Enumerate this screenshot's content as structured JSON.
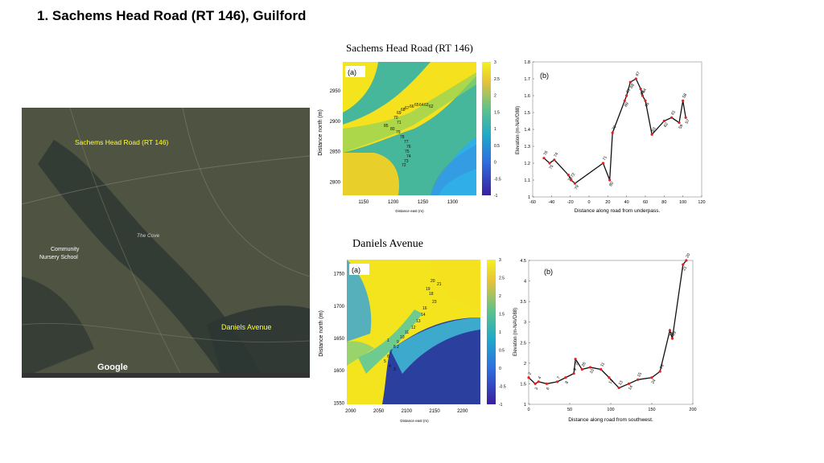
{
  "slide": {
    "title": "1.   Sachems Head Road (RT 146), Guilford",
    "top_heading": "Sachems Head Road (RT 146)",
    "bottom_heading": "Daniels Avenue"
  },
  "aerial_map": {
    "label_top": "Sachems Head Road (RT 146)",
    "label_bottom": "Daniels Avenue",
    "place_labels": [
      "Community",
      "Nursery School",
      "The Cove",
      "Google"
    ],
    "colors": {
      "label_yellow": "#ffff33",
      "land": "#4a5240",
      "water": "#2f3a33"
    }
  },
  "chart_data": [
    {
      "type": "heatmap",
      "panel_label": "(a)",
      "xlabel": "Distance east (m)",
      "ylabel": "Distance north (m)",
      "xticks": [
        1150,
        1200,
        1250,
        1300
      ],
      "yticks": [
        2800,
        2850,
        2900,
        2950
      ],
      "xlim": [
        1115,
        1340
      ],
      "ylim": [
        2778,
        2998
      ],
      "colorbar": {
        "ticks": [
          -1,
          -0.5,
          0,
          0.5,
          1,
          1.5,
          2,
          2.5,
          3
        ],
        "range": [
          -1,
          3
        ]
      },
      "point_labels": [
        "85",
        "80",
        "79",
        "78",
        "77",
        "76",
        "75",
        "74",
        "73",
        "72",
        "71",
        "70",
        "69",
        "68",
        "67",
        "66",
        "65",
        "64",
        "63",
        "62"
      ]
    },
    {
      "type": "line",
      "panel_label": "(b)",
      "xlabel": "Distance along road from underpass.",
      "ylabel": "Elevation (m-NAVD88)",
      "xlim": [
        -60,
        120
      ],
      "ylim": [
        1,
        1.8
      ],
      "xticks": [
        -60,
        -40,
        -20,
        0,
        20,
        40,
        60,
        80,
        100,
        120
      ],
      "yticks": [
        1,
        1.1,
        1.2,
        1.3,
        1.4,
        1.5,
        1.6,
        1.7,
        1.8
      ],
      "points": [
        {
          "x": -48,
          "y": 1.23,
          "label": "76"
        },
        {
          "x": -42,
          "y": 1.2,
          "label": "75"
        },
        {
          "x": -37,
          "y": 1.22,
          "label": "74"
        },
        {
          "x": -22,
          "y": 1.13,
          "label": "73"
        },
        {
          "x": -19,
          "y": 1.1,
          "label": "72"
        },
        {
          "x": -15,
          "y": 1.08,
          "label": "79"
        },
        {
          "x": 15,
          "y": 1.2,
          "label": "71"
        },
        {
          "x": 22,
          "y": 1.1,
          "label": "80"
        },
        {
          "x": 25,
          "y": 1.38,
          "label": "70"
        },
        {
          "x": 38,
          "y": 1.57,
          "label": "69"
        },
        {
          "x": 40,
          "y": 1.6,
          "label": "61"
        },
        {
          "x": 44,
          "y": 1.68,
          "label": "68"
        },
        {
          "x": 50,
          "y": 1.7,
          "label": "67"
        },
        {
          "x": 55,
          "y": 1.64,
          "label": "66"
        },
        {
          "x": 57,
          "y": 1.6,
          "label": "64"
        },
        {
          "x": 60,
          "y": 1.57,
          "label": "65"
        },
        {
          "x": 67,
          "y": 1.37,
          "label": "63"
        },
        {
          "x": 80,
          "y": 1.45,
          "label": "62"
        },
        {
          "x": 88,
          "y": 1.47,
          "label": "61"
        },
        {
          "x": 96,
          "y": 1.44,
          "label": "59"
        },
        {
          "x": 100,
          "y": 1.57,
          "label": "58"
        },
        {
          "x": 103,
          "y": 1.47,
          "label": "57"
        }
      ]
    },
    {
      "type": "heatmap",
      "panel_label": "(a)",
      "xlabel": "Distance east (m)",
      "ylabel": "Distance north (m)",
      "xticks": [
        2000,
        2050,
        2100,
        2150,
        2200
      ],
      "yticks": [
        1550,
        1600,
        1650,
        1700,
        1750
      ],
      "xlim": [
        1993,
        2232
      ],
      "ylim": [
        1548,
        1772
      ],
      "colorbar": {
        "ticks": [
          -1,
          -0.5,
          0,
          0.5,
          1,
          1.5,
          2,
          2.5,
          3
        ],
        "range": [
          -1,
          3
        ]
      },
      "point_labels": [
        "20",
        "21",
        "19",
        "18",
        "23",
        "16",
        "14",
        "13",
        "12",
        "11",
        "10",
        "9",
        "8",
        "7",
        "6",
        "5",
        "4",
        "3",
        "2",
        "1"
      ]
    },
    {
      "type": "line",
      "panel_label": "(b)",
      "xlabel": "Distance along road from southwest.",
      "ylabel": "Elevation (m-NAVD88)",
      "xlim": [
        0,
        200
      ],
      "ylim": [
        1,
        4.5
      ],
      "xticks": [
        0,
        50,
        100,
        150,
        200
      ],
      "yticks": [
        1,
        1.5,
        2,
        2.5,
        3,
        3.5,
        4,
        4.5
      ],
      "points": [
        {
          "x": 0,
          "y": 1.65,
          "label": "2"
        },
        {
          "x": 8,
          "y": 1.5,
          "label": "3"
        },
        {
          "x": 12,
          "y": 1.55,
          "label": "4"
        },
        {
          "x": 22,
          "y": 1.5,
          "label": "6"
        },
        {
          "x": 35,
          "y": 1.55,
          "label": "7"
        },
        {
          "x": 45,
          "y": 1.65,
          "label": "8"
        },
        {
          "x": 55,
          "y": 1.75,
          "label": "9"
        },
        {
          "x": 57,
          "y": 2.1,
          "label": "27"
        },
        {
          "x": 65,
          "y": 1.85,
          "label": "26"
        },
        {
          "x": 75,
          "y": 1.9,
          "label": "10"
        },
        {
          "x": 88,
          "y": 1.85,
          "label": "11"
        },
        {
          "x": 98,
          "y": 1.65,
          "label": "12"
        },
        {
          "x": 110,
          "y": 1.4,
          "label": "13"
        },
        {
          "x": 122,
          "y": 1.5,
          "label": "14"
        },
        {
          "x": 133,
          "y": 1.6,
          "label": "15"
        },
        {
          "x": 150,
          "y": 1.65,
          "label": "24"
        },
        {
          "x": 160,
          "y": 1.8,
          "label": "16"
        },
        {
          "x": 172,
          "y": 2.8,
          "label": "18"
        },
        {
          "x": 175,
          "y": 2.6,
          "label": "19"
        },
        {
          "x": 188,
          "y": 4.4,
          "label": "21"
        },
        {
          "x": 192,
          "y": 4.5,
          "label": "20"
        }
      ]
    }
  ]
}
